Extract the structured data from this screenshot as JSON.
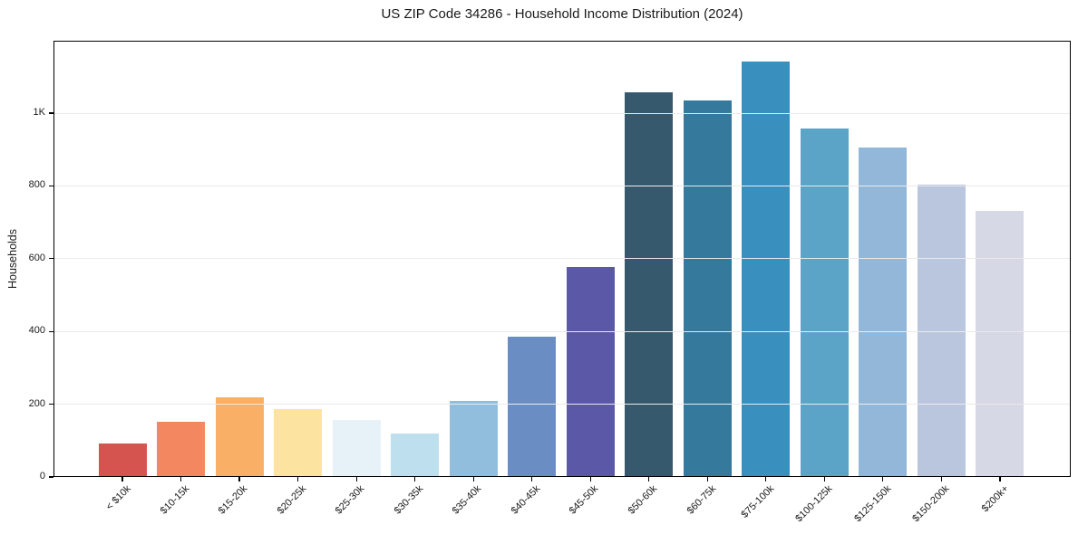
{
  "chart_data": {
    "type": "bar",
    "title": "US ZIP Code 34286 - Household Income Distribution (2024)",
    "xlabel": "",
    "ylabel": "Households",
    "categories": [
      "< $10k",
      "$10-15k",
      "$15-20k",
      "$20-25k",
      "$25-30k",
      "$30-35k",
      "$35-40k",
      "$40-45k",
      "$45-50k",
      "$50-60k",
      "$60-75k",
      "$75-100k",
      "$100-125k",
      "$125-150k",
      "$150-200k",
      "$200k+"
    ],
    "values": [
      93,
      151,
      220,
      187,
      156,
      119,
      208,
      386,
      577,
      1058,
      1034,
      1143,
      957,
      906,
      803,
      731
    ],
    "bar_colors": [
      "#d6544f",
      "#f3875f",
      "#f9b066",
      "#fde3a0",
      "#e6f2f8",
      "#bedfed",
      "#92bedd",
      "#6a8ec3",
      "#5a58a7",
      "#36596e",
      "#35799c",
      "#3990bf",
      "#5ca4c7",
      "#92b7d9",
      "#bac6de",
      "#d6d8e6"
    ],
    "ylim": [
      0,
      1199
    ],
    "yticks": [
      {
        "value": 0,
        "label": "0"
      },
      {
        "value": 200,
        "label": "200"
      },
      {
        "value": 400,
        "label": "400"
      },
      {
        "value": 600,
        "label": "600"
      },
      {
        "value": 800,
        "label": "800"
      },
      {
        "value": 1000,
        "label": "1K"
      }
    ],
    "grid": "horizontal",
    "legend": "none",
    "background_color": "#ffffff",
    "frame_color": "#000000",
    "gridline_color": "#eaeaea"
  }
}
